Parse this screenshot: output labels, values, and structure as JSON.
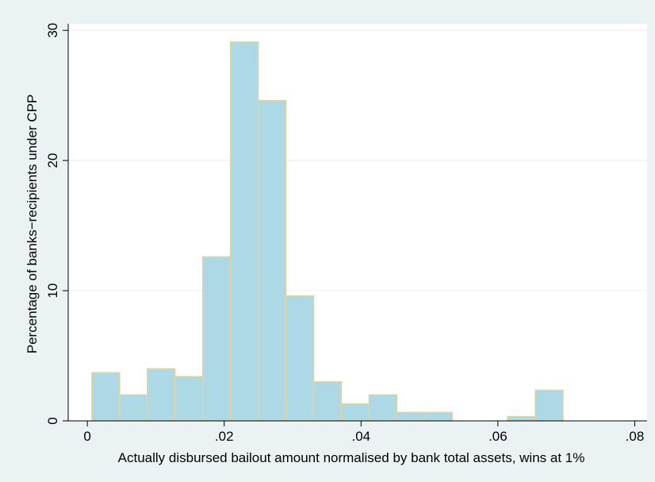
{
  "chart_data": {
    "type": "bar",
    "subtype": "histogram",
    "title": "",
    "xlabel": "Actually disbursed bailout amount normalised by bank total assets, wins at 1%",
    "ylabel": "Percentage of banks−recipients under CPP",
    "xlim": [
      -0.0028,
      0.0818
    ],
    "ylim": [
      0,
      30.5
    ],
    "x_ticks": [
      {
        "value": 0,
        "label": "0"
      },
      {
        "value": 0.02,
        "label": ".02"
      },
      {
        "value": 0.04,
        "label": ".04"
      },
      {
        "value": 0.06,
        "label": ".06"
      },
      {
        "value": 0.08,
        "label": ".08"
      }
    ],
    "y_ticks": [
      {
        "value": 0,
        "label": "0"
      },
      {
        "value": 10,
        "label": "10"
      },
      {
        "value": 20,
        "label": "20"
      },
      {
        "value": 30,
        "label": "30"
      }
    ],
    "grid": true,
    "legend": "none",
    "bin_width": 0.00405,
    "bins": [
      {
        "start": 0.00067,
        "value": 3.7
      },
      {
        "start": 0.00472,
        "value": 2.0
      },
      {
        "start": 0.00877,
        "value": 4.0
      },
      {
        "start": 0.01282,
        "value": 3.4
      },
      {
        "start": 0.01687,
        "value": 12.6
      },
      {
        "start": 0.02092,
        "value": 29.1
      },
      {
        "start": 0.02497,
        "value": 24.6
      },
      {
        "start": 0.02902,
        "value": 9.6
      },
      {
        "start": 0.03307,
        "value": 3.0
      },
      {
        "start": 0.03712,
        "value": 1.3
      },
      {
        "start": 0.04117,
        "value": 2.0
      },
      {
        "start": 0.04522,
        "value": 0.65
      },
      {
        "start": 0.04927,
        "value": 0.65
      },
      {
        "start": 0.06142,
        "value": 0.33
      },
      {
        "start": 0.06547,
        "value": 2.35
      }
    ],
    "colors": {
      "bar_fill": "#add8e6",
      "bar_edge": "#e2d39a",
      "plot_background": "#ffffff",
      "outer_background": "#eaf2f3",
      "grid": "#eaf2f3",
      "axis": "#000000"
    }
  }
}
